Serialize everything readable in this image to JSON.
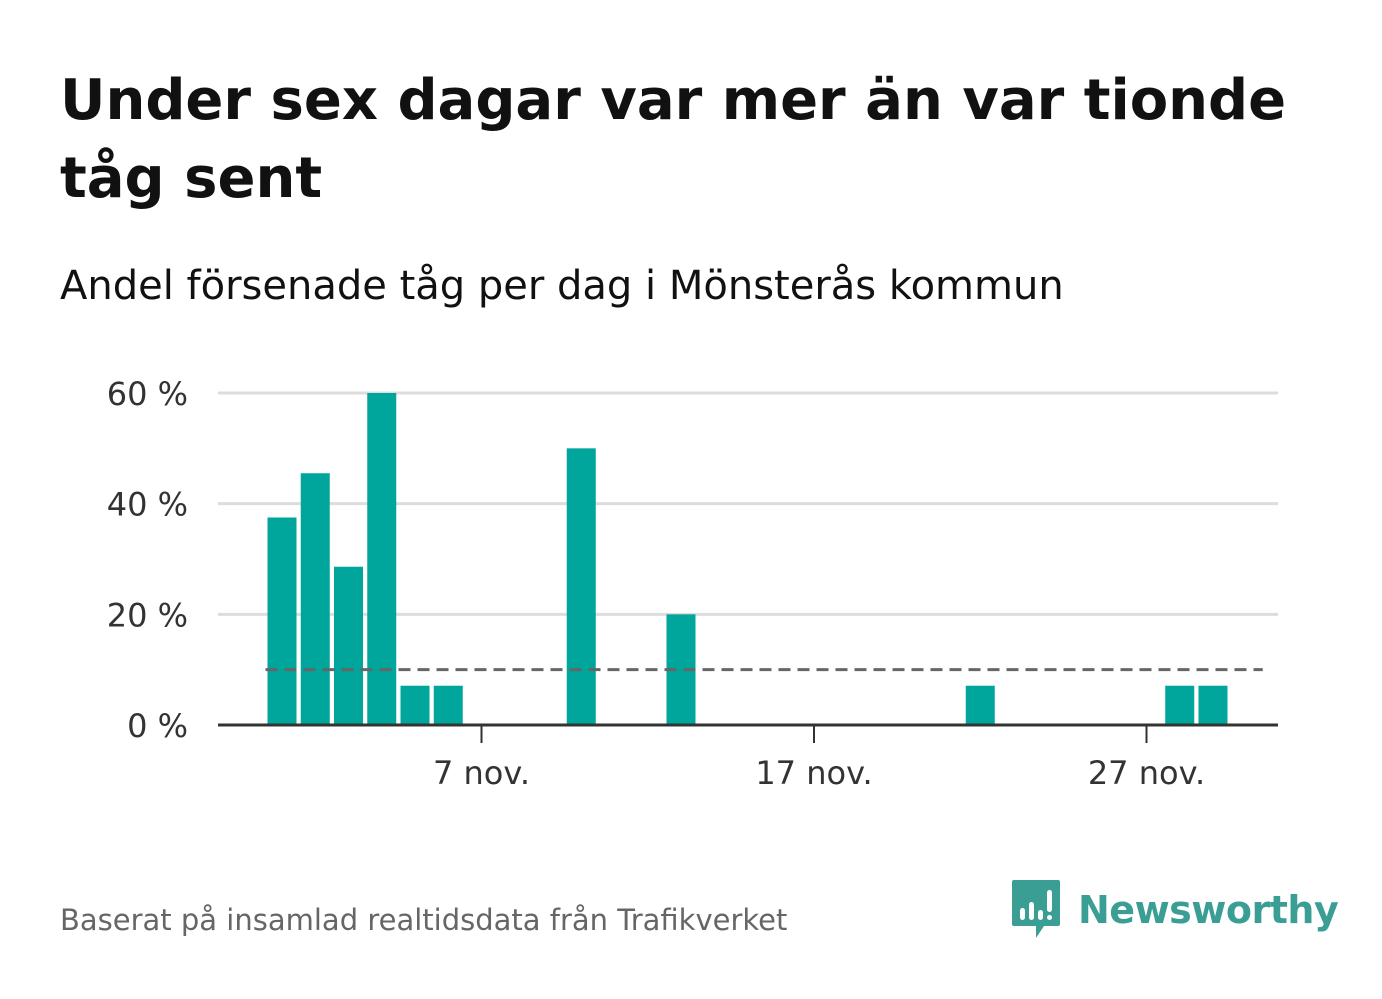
{
  "title": "Under sex dagar var mer än var tionde tåg sent",
  "subtitle": "Andel försenade tåg per dag i Mönsterås kommun",
  "footer": {
    "source": "Baserat på insamlad realtidsdata från Trafikverket",
    "brand": "Newsworthy",
    "brand_icon": "bar-chart-speech-bubble-icon"
  },
  "colors": {
    "bar": "#00a59b",
    "grid": "#dddddd",
    "axis": "#333333",
    "reference_line": "#666666",
    "brand": "#3a9e95"
  },
  "chart_data": {
    "type": "bar",
    "unit": "%",
    "x_start_day": 1,
    "x_end_day": 30,
    "x_month": "nov.",
    "x": [
      1,
      2,
      3,
      4,
      5,
      6,
      7,
      8,
      9,
      10,
      11,
      12,
      13,
      14,
      15,
      16,
      17,
      18,
      19,
      20,
      21,
      22,
      23,
      24,
      25,
      26,
      27,
      28,
      29,
      30
    ],
    "values": [
      37.5,
      45.5,
      28.6,
      60,
      7.1,
      7.1,
      0,
      0,
      0,
      50,
      0,
      0,
      20,
      0,
      0,
      0,
      0,
      0,
      0,
      0,
      0,
      7.1,
      0,
      0,
      0,
      0,
      0,
      7.1,
      7.1,
      0
    ],
    "xticks": [
      7,
      17,
      27
    ],
    "xtick_labels": [
      "7 nov.",
      "17 nov.",
      "27 nov."
    ],
    "yticks": [
      0,
      20,
      40,
      60
    ],
    "ytick_labels": [
      "0 %",
      "20 %",
      "40 %",
      "60 %"
    ],
    "ylim": [
      0,
      60
    ],
    "reference_line": 10,
    "grid": true
  }
}
